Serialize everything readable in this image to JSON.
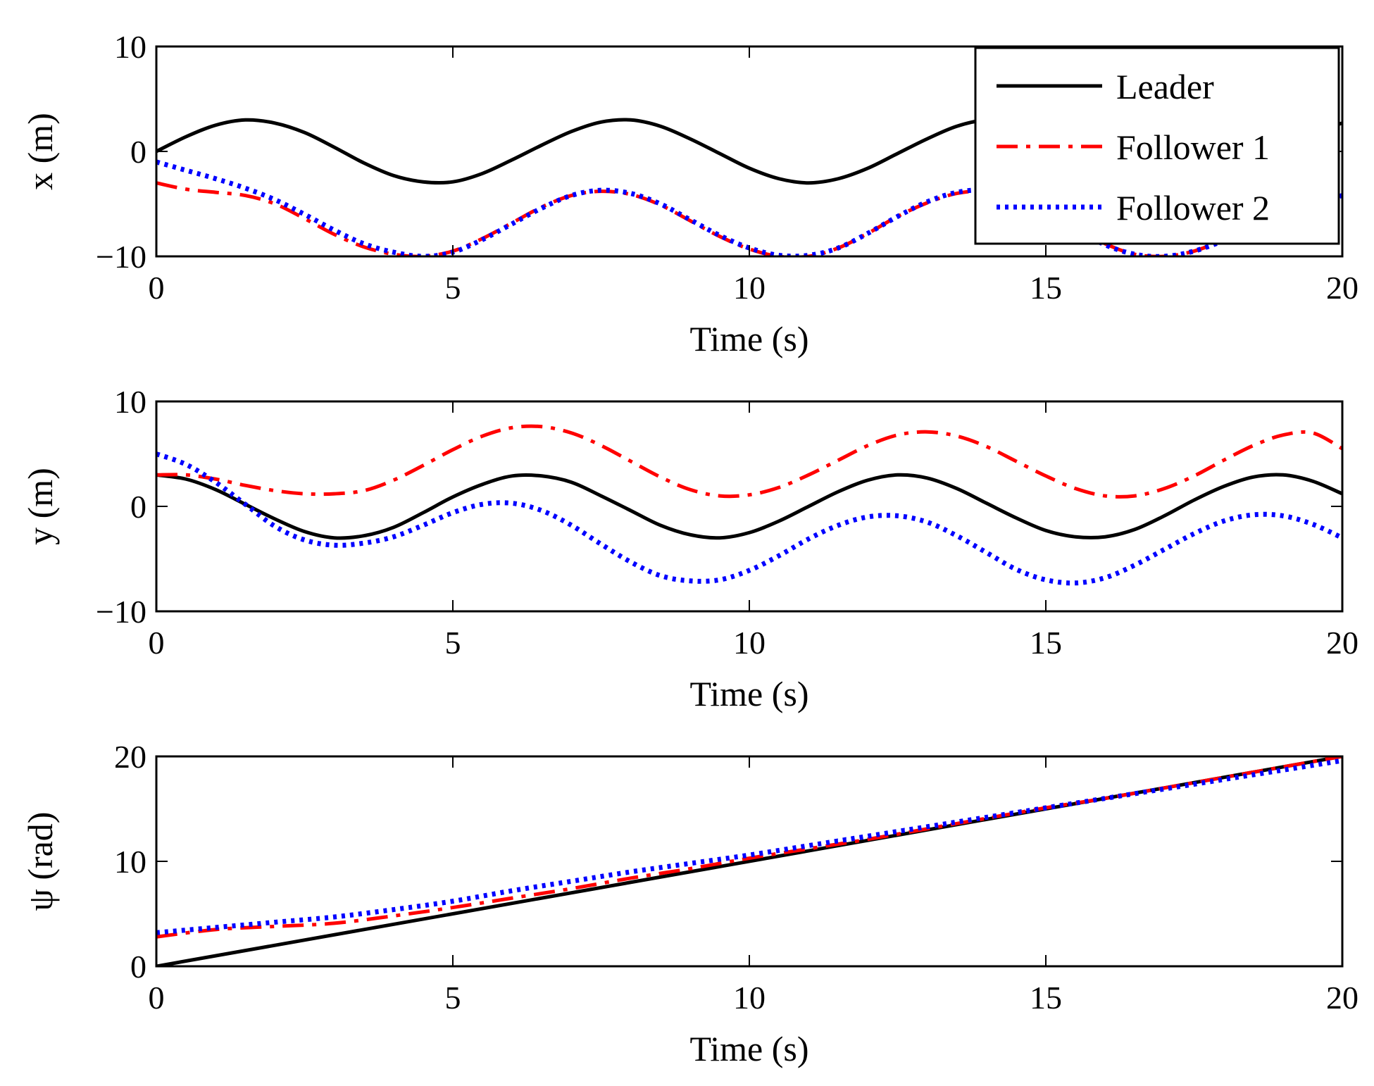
{
  "figure": {
    "xlabel": "Time (s)",
    "legend": {
      "placement": "top-right of first panel",
      "entries": [
        {
          "label": "Leader",
          "color": "#000000",
          "style": "solid"
        },
        {
          "label": "Follower 1",
          "color": "#ff0000",
          "style": "dash-dot"
        },
        {
          "label": "Follower 2",
          "color": "#0000ff",
          "style": "dotted"
        }
      ]
    }
  },
  "chart_data": [
    {
      "type": "line",
      "ylabel": "x (m)",
      "xlabel": "Time (s)",
      "xlim": [
        0,
        20
      ],
      "ylim": [
        -10,
        10
      ],
      "xticks": [
        0,
        5,
        10,
        15,
        20
      ],
      "yticks": [
        -10,
        0,
        10
      ],
      "ytick_labels": [
        "−10",
        "0",
        "10"
      ],
      "grid": false,
      "series": [
        {
          "name": "Leader",
          "color": "#000000",
          "style": "solid",
          "x": [
            0,
            0.5,
            1,
            1.5,
            2,
            2.5,
            3,
            3.5,
            4,
            4.5,
            5,
            5.5,
            6,
            6.5,
            7,
            7.5,
            8,
            8.5,
            9,
            9.5,
            10,
            10.5,
            11,
            11.5,
            12,
            12.5,
            13,
            13.5,
            14,
            14.5,
            15,
            15.5,
            16,
            16.5,
            17,
            17.5,
            18,
            18.5,
            19,
            19.5,
            20
          ],
          "y": [
            0,
            1.4,
            2.5,
            3.0,
            2.7,
            1.8,
            0.4,
            -1.1,
            -2.3,
            -2.9,
            -2.9,
            -2.1,
            -0.8,
            0.6,
            1.9,
            2.8,
            3.0,
            2.4,
            1.2,
            -0.2,
            -1.6,
            -2.6,
            -3.0,
            -2.6,
            -1.6,
            -0.2,
            1.2,
            2.4,
            3.0,
            2.8,
            1.9,
            0.6,
            -0.8,
            -2.1,
            -2.9,
            -2.9,
            -2.3,
            -1.1,
            0.4,
            1.8,
            2.7
          ]
        },
        {
          "name": "Follower 1",
          "color": "#ff0000",
          "style": "dash-dot",
          "x": [
            0,
            0.5,
            1,
            1.5,
            2,
            2.5,
            3,
            3.5,
            4,
            4.5,
            5,
            5.5,
            6,
            6.5,
            7,
            7.5,
            8,
            8.5,
            9,
            9.5,
            10,
            10.5,
            11,
            11.5,
            12,
            12.5,
            13,
            13.5,
            14,
            14.5,
            15,
            15.5,
            16,
            16.5,
            17,
            17.5,
            18,
            18.5,
            19,
            19.5,
            20
          ],
          "y": [
            -3.0,
            -3.6,
            -3.9,
            -4.2,
            -5.0,
            -6.4,
            -7.9,
            -9.1,
            -9.8,
            -10.0,
            -9.5,
            -8.3,
            -6.8,
            -5.3,
            -4.2,
            -3.8,
            -4.1,
            -5.1,
            -6.6,
            -8.1,
            -9.3,
            -10.0,
            -10.0,
            -9.2,
            -7.8,
            -6.2,
            -4.9,
            -4.0,
            -3.8,
            -4.4,
            -5.7,
            -7.3,
            -8.8,
            -9.8,
            -10.0,
            -9.5,
            -8.4,
            -7.1,
            -5.9,
            -4.9,
            -4.0
          ]
        },
        {
          "name": "Follower 2",
          "color": "#0000ff",
          "style": "dotted",
          "x": [
            0,
            0.5,
            1,
            1.5,
            2,
            2.5,
            3,
            3.5,
            4,
            4.5,
            5,
            5.5,
            6,
            6.5,
            7,
            7.5,
            8,
            8.5,
            9,
            9.5,
            10,
            10.5,
            11,
            11.5,
            12,
            12.5,
            13,
            13.5,
            14,
            14.5,
            15,
            15.5,
            16,
            16.5,
            17,
            17.5,
            18,
            18.5,
            19,
            19.5,
            20
          ],
          "y": [
            -1.0,
            -1.8,
            -2.6,
            -3.5,
            -4.6,
            -6.0,
            -7.5,
            -8.8,
            -9.6,
            -10.0,
            -9.6,
            -8.4,
            -6.9,
            -5.4,
            -4.2,
            -3.7,
            -4.0,
            -5.0,
            -6.5,
            -8.0,
            -9.2,
            -9.9,
            -9.9,
            -9.2,
            -7.8,
            -6.2,
            -4.8,
            -3.9,
            -3.7,
            -4.4,
            -5.8,
            -7.4,
            -8.9,
            -9.8,
            -10.0,
            -9.5,
            -8.5,
            -7.3,
            -6.1,
            -5.0,
            -4.2
          ]
        }
      ]
    },
    {
      "type": "line",
      "ylabel": "y (m)",
      "xlabel": "Time (s)",
      "xlim": [
        0,
        20
      ],
      "ylim": [
        -10,
        10
      ],
      "xticks": [
        0,
        5,
        10,
        15,
        20
      ],
      "yticks": [
        -10,
        0,
        10
      ],
      "ytick_labels": [
        "−10",
        "0",
        "10"
      ],
      "grid": false,
      "series": [
        {
          "name": "Leader",
          "color": "#000000",
          "style": "solid",
          "x": [
            0,
            0.5,
            1,
            1.5,
            2,
            2.5,
            3,
            3.5,
            4,
            4.5,
            5,
            5.5,
            6,
            6.5,
            7,
            7.5,
            8,
            8.5,
            9,
            9.5,
            10,
            10.5,
            11,
            11.5,
            12,
            12.5,
            13,
            13.5,
            14,
            14.5,
            15,
            15.5,
            16,
            16.5,
            17,
            17.5,
            18,
            18.5,
            19,
            19.5,
            20
          ],
          "y": [
            3.0,
            2.6,
            1.6,
            0.2,
            -1.2,
            -2.4,
            -3.0,
            -2.8,
            -2.0,
            -0.6,
            0.9,
            2.1,
            2.9,
            2.9,
            2.3,
            1.0,
            -0.4,
            -1.8,
            -2.7,
            -3.0,
            -2.5,
            -1.4,
            0.0,
            1.4,
            2.5,
            3.0,
            2.7,
            1.7,
            0.3,
            -1.1,
            -2.3,
            -2.9,
            -2.9,
            -2.2,
            -0.9,
            0.6,
            1.9,
            2.8,
            3.0,
            2.4,
            1.2
          ]
        },
        {
          "name": "Follower 1",
          "color": "#ff0000",
          "style": "dash-dot",
          "x": [
            0,
            0.5,
            1,
            1.5,
            2,
            2.5,
            3,
            3.5,
            4,
            4.5,
            5,
            5.5,
            6,
            6.5,
            7,
            7.5,
            8,
            8.5,
            9,
            9.5,
            10,
            10.5,
            11,
            11.5,
            12,
            12.5,
            13,
            13.5,
            14,
            14.5,
            15,
            15.5,
            16,
            16.5,
            17,
            17.5,
            18,
            18.5,
            19,
            19.5,
            20
          ],
          "y": [
            3.0,
            3.0,
            2.6,
            2.0,
            1.5,
            1.2,
            1.2,
            1.5,
            2.5,
            3.9,
            5.4,
            6.7,
            7.5,
            7.6,
            7.0,
            5.8,
            4.3,
            2.8,
            1.6,
            1.0,
            1.1,
            1.8,
            3.0,
            4.4,
            5.8,
            6.8,
            7.1,
            6.7,
            5.7,
            4.3,
            2.9,
            1.7,
            1.0,
            1.0,
            1.7,
            2.9,
            4.4,
            5.8,
            6.8,
            7.0,
            5.5
          ]
        },
        {
          "name": "Follower 2",
          "color": "#0000ff",
          "style": "dotted",
          "x": [
            0,
            0.5,
            1,
            1.5,
            2,
            2.5,
            3,
            3.5,
            4,
            4.5,
            5,
            5.5,
            6,
            6.5,
            7,
            7.5,
            8,
            8.5,
            9,
            9.5,
            10,
            10.5,
            11,
            11.5,
            12,
            12.5,
            13,
            13.5,
            14,
            14.5,
            15,
            15.5,
            16,
            16.5,
            17,
            17.5,
            18,
            18.5,
            19,
            19.5,
            20
          ],
          "y": [
            5.0,
            4.0,
            2.3,
            0.2,
            -1.9,
            -3.2,
            -3.7,
            -3.5,
            -2.9,
            -1.8,
            -0.6,
            0.2,
            0.3,
            -0.4,
            -1.8,
            -3.6,
            -5.3,
            -6.6,
            -7.1,
            -7.0,
            -6.1,
            -4.7,
            -3.1,
            -1.8,
            -1.0,
            -0.9,
            -1.5,
            -2.8,
            -4.4,
            -6.0,
            -7.0,
            -7.3,
            -6.8,
            -5.6,
            -4.1,
            -2.6,
            -1.4,
            -0.8,
            -0.9,
            -1.7,
            -3.0
          ]
        }
      ]
    },
    {
      "type": "line",
      "ylabel": "ψ (rad)",
      "xlabel": "Time (s)",
      "xlim": [
        0,
        20
      ],
      "ylim": [
        0,
        20
      ],
      "xticks": [
        0,
        5,
        10,
        15,
        20
      ],
      "yticks": [
        0,
        10,
        20
      ],
      "ytick_labels": [
        "0",
        "10",
        "20"
      ],
      "grid": false,
      "series": [
        {
          "name": "Leader",
          "color": "#000000",
          "style": "solid",
          "x": [
            0,
            20
          ],
          "y": [
            0,
            20
          ]
        },
        {
          "name": "Follower 1",
          "color": "#ff0000",
          "style": "dash-dot",
          "x": [
            0,
            1,
            2,
            3,
            4,
            5,
            6,
            7,
            8,
            9,
            10,
            11,
            12,
            13,
            14,
            15,
            16,
            17,
            18,
            19,
            20
          ],
          "y": [
            2.8,
            3.5,
            3.8,
            4.1,
            4.8,
            5.6,
            6.5,
            7.4,
            8.4,
            9.3,
            10.3,
            11.2,
            12.1,
            13.1,
            14.1,
            15.1,
            16.0,
            17.0,
            18.0,
            19.0,
            20.0
          ]
        },
        {
          "name": "Follower 2",
          "color": "#0000ff",
          "style": "dotted",
          "x": [
            0,
            1,
            2,
            3,
            4,
            5,
            6,
            7,
            8,
            9,
            10,
            11,
            12,
            13,
            14,
            15,
            16,
            17,
            18,
            19,
            20
          ],
          "y": [
            3.2,
            3.7,
            4.2,
            4.7,
            5.4,
            6.2,
            7.2,
            8.1,
            9.0,
            9.8,
            10.6,
            11.5,
            12.4,
            13.3,
            14.2,
            15.1,
            16.0,
            16.9,
            17.8,
            18.7,
            19.6
          ]
        }
      ]
    }
  ]
}
